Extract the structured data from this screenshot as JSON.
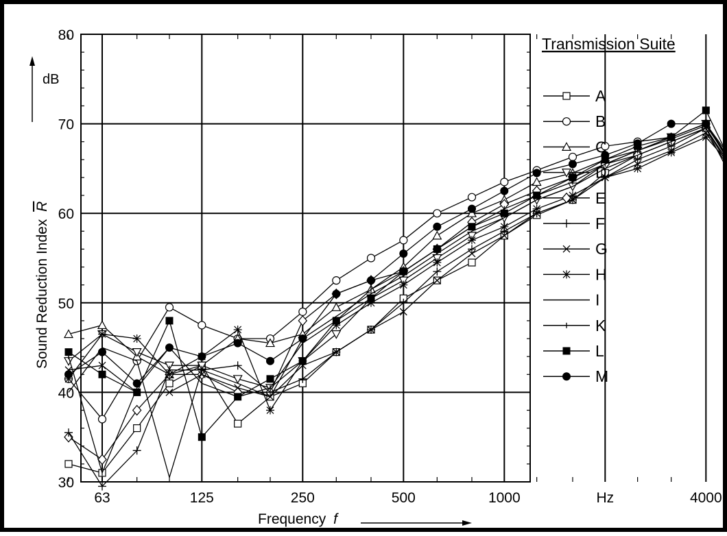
{
  "chart_data": {
    "type": "line",
    "title": "",
    "xlabel": "Frequency",
    "xlabel_symbol": "f",
    "ylabel": "Sound Reduction Index",
    "ylabel_symbol": "R",
    "y_unit": "dB",
    "x_unit": "Hz",
    "x_scale": "log2 third-octave",
    "xlim": [
      50,
      5000
    ],
    "ylim": [
      30,
      80
    ],
    "y_ticks": [
      30,
      40,
      50,
      60,
      70,
      80
    ],
    "x_tick_labels": [
      "63",
      "125",
      "250",
      "500",
      "1000",
      "Hz",
      "4000"
    ],
    "x_tick_values": [
      63,
      125,
      250,
      500,
      1000,
      2000,
      4000
    ],
    "grid": true,
    "legend_title": "Transmission Suite",
    "legend_position": "right",
    "x": [
      50,
      63,
      80,
      100,
      125,
      160,
      200,
      250,
      315,
      400,
      500,
      630,
      800,
      1000,
      1250,
      1600,
      2000,
      2500,
      3150,
      4000,
      5000
    ],
    "series": [
      {
        "name": "A",
        "marker": "open-square",
        "values": [
          32.0,
          31.0,
          36.0,
          41.0,
          43.0,
          36.5,
          39.5,
          41.0,
          44.5,
          47.0,
          50.5,
          52.5,
          54.5,
          57.5,
          59.8,
          61.5,
          64.5,
          66.5,
          68.0,
          69.5,
          63.5
        ]
      },
      {
        "name": "B",
        "marker": "open-circle",
        "values": [
          41.5,
          37.0,
          43.5,
          49.5,
          47.5,
          46.0,
          46.0,
          49.0,
          52.5,
          55.0,
          57.0,
          60.0,
          61.8,
          63.5,
          64.8,
          66.3,
          67.5,
          68.0,
          68.5,
          70.0,
          64.0
        ]
      },
      {
        "name": "C",
        "marker": "open-triangle",
        "values": [
          46.5,
          47.5,
          44.0,
          42.0,
          43.0,
          46.0,
          45.5,
          46.5,
          49.5,
          51.5,
          54.0,
          57.5,
          60.0,
          61.5,
          63.5,
          64.5,
          66.0,
          67.0,
          68.5,
          70.0,
          65.0
        ]
      },
      {
        "name": "D",
        "marker": "open-triangle-down",
        "values": [
          43.5,
          46.5,
          44.5,
          43.0,
          43.0,
          41.5,
          40.5,
          43.5,
          46.5,
          50.5,
          52.5,
          55.0,
          57.5,
          59.5,
          61.5,
          63.0,
          65.5,
          67.0,
          68.5,
          70.0,
          64.5
        ]
      },
      {
        "name": "E",
        "marker": "open-diamond",
        "values": [
          35.0,
          32.5,
          38.0,
          42.0,
          42.0,
          40.0,
          40.0,
          48.0,
          51.0,
          52.5,
          53.5,
          56.0,
          59.0,
          61.0,
          62.5,
          64.0,
          65.5,
          66.5,
          68.0,
          69.5,
          62.5
        ]
      },
      {
        "name": "F",
        "marker": "plus",
        "values": [
          35.5,
          29.5,
          33.5,
          42.5,
          42.5,
          43.0,
          40.0,
          41.5,
          44.5,
          47.0,
          50.0,
          53.5,
          56.0,
          58.0,
          60.0,
          61.5,
          64.0,
          66.0,
          67.5,
          69.5,
          64.0
        ]
      },
      {
        "name": "G",
        "marker": "x",
        "values": [
          42.5,
          43.0,
          40.0,
          40.0,
          42.0,
          40.5,
          39.5,
          43.0,
          44.5,
          47.0,
          49.0,
          52.5,
          55.5,
          57.5,
          60.0,
          61.5,
          64.0,
          65.5,
          67.0,
          69.0,
          63.5
        ]
      },
      {
        "name": "H",
        "marker": "asterisk",
        "values": [
          41.5,
          46.5,
          46.0,
          42.0,
          44.0,
          47.0,
          38.0,
          43.5,
          47.5,
          50.0,
          52.0,
          54.5,
          57.0,
          58.5,
          60.5,
          62.0,
          64.0,
          65.0,
          66.8,
          68.5,
          64.5
        ]
      },
      {
        "name": "I",
        "marker": "none",
        "values": [
          40.0,
          45.0,
          43.5,
          30.5,
          42.5,
          41.0,
          39.5,
          46.0,
          48.5,
          51.0,
          53.0,
          55.5,
          58.0,
          59.5,
          61.5,
          63.0,
          65.0,
          66.5,
          68.0,
          69.5,
          64.0
        ]
      },
      {
        "name": "K",
        "marker": "tick",
        "values": [
          44.0,
          31.0,
          40.5,
          45.0,
          41.0,
          39.5,
          40.5,
          45.5,
          48.0,
          51.5,
          53.5,
          56.0,
          58.5,
          60.5,
          62.0,
          63.5,
          65.5,
          67.0,
          68.3,
          69.8,
          64.5
        ]
      },
      {
        "name": "L",
        "marker": "filled-square",
        "values": [
          44.5,
          42.0,
          40.0,
          48.0,
          35.0,
          39.5,
          41.5,
          43.5,
          48.0,
          50.5,
          53.5,
          56.0,
          58.5,
          60.0,
          62.0,
          64.0,
          66.0,
          67.5,
          68.5,
          71.5,
          64.0
        ]
      },
      {
        "name": "M",
        "marker": "filled-circle",
        "values": [
          42.0,
          44.5,
          41.0,
          45.0,
          44.0,
          45.5,
          43.5,
          46.0,
          51.0,
          52.5,
          55.5,
          58.5,
          60.5,
          62.5,
          64.5,
          65.5,
          66.5,
          67.8,
          70.0,
          70.0,
          64.5
        ]
      }
    ]
  }
}
